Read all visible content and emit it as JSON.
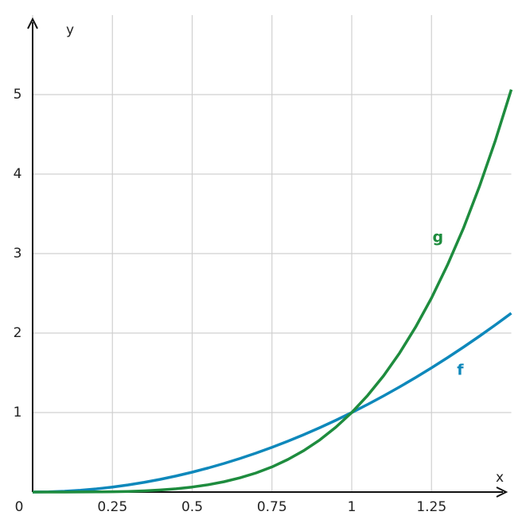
{
  "chart_data": {
    "type": "line",
    "x": [
      0,
      0.05,
      0.1,
      0.15,
      0.2,
      0.25,
      0.3,
      0.35,
      0.4,
      0.45,
      0.5,
      0.55,
      0.6,
      0.65,
      0.7,
      0.75,
      0.8,
      0.85,
      0.9,
      0.95,
      1,
      1.05,
      1.1,
      1.15,
      1.2,
      1.25,
      1.3,
      1.35,
      1.4,
      1.45,
      1.5
    ],
    "series": [
      {
        "name": "f",
        "color": "#0e88bb",
        "values": [
          0,
          0.0025,
          0.01,
          0.0225,
          0.04,
          0.0625,
          0.09,
          0.1225,
          0.16,
          0.2025,
          0.25,
          0.3025,
          0.36,
          0.4225,
          0.49,
          0.5625,
          0.64,
          0.7225,
          0.81,
          0.9025,
          1,
          1.1025,
          1.21,
          1.3225,
          1.44,
          1.5625,
          1.69,
          1.8225,
          1.96,
          2.1025,
          2.25
        ]
      },
      {
        "name": "g",
        "color": "#1e8c3e",
        "values": [
          0,
          0,
          0,
          0.001,
          0.002,
          0.004,
          0.008,
          0.015,
          0.026,
          0.041,
          0.063,
          0.092,
          0.13,
          0.179,
          0.24,
          0.316,
          0.41,
          0.522,
          0.656,
          0.815,
          1,
          1.216,
          1.464,
          1.749,
          2.074,
          2.441,
          2.856,
          3.318,
          3.842,
          4.421,
          5.063
        ]
      }
    ],
    "x_label": "x",
    "y_label": "y",
    "xlim": [
      0,
      1.5
    ],
    "ylim": [
      0,
      6
    ],
    "xticks": [
      0,
      0.25,
      0.5,
      0.75,
      1,
      1.25
    ],
    "yticks": [
      1,
      2,
      3,
      4,
      5
    ],
    "grid": true
  }
}
